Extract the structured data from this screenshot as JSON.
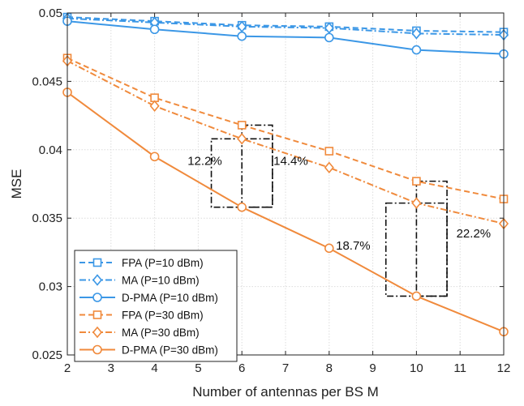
{
  "chart_data": {
    "type": "line",
    "title": "",
    "xlabel": "Number of antennas per BS M",
    "ylabel": "MSE",
    "xlim": [
      2,
      12
    ],
    "ylim": [
      0.025,
      0.05
    ],
    "x_ticks": [
      2,
      3,
      4,
      5,
      6,
      7,
      8,
      9,
      10,
      11,
      12
    ],
    "y_ticks": [
      0.025,
      0.03,
      0.035,
      0.04,
      0.045,
      0.05
    ],
    "y_tick_labels": [
      "0.025",
      "0.03",
      "0.035",
      "0.04",
      "0.045",
      "0.05"
    ],
    "grid": true,
    "legend_location": "bottom-left",
    "x": [
      2,
      4,
      6,
      8,
      10,
      12
    ],
    "series": [
      {
        "name": "FPA (P=10 dBm)",
        "color": "#3b97e6",
        "marker": "square",
        "dash": "dashed",
        "values": [
          0.0497,
          0.0494,
          0.0491,
          0.049,
          0.0487,
          0.0486
        ]
      },
      {
        "name": "MA (P=10 dBm)",
        "color": "#3b97e6",
        "marker": "diamond",
        "dash": "dashdot",
        "values": [
          0.0496,
          0.0493,
          0.049,
          0.0489,
          0.0485,
          0.0484
        ]
      },
      {
        "name": "D-PMA (P=10 dBm)",
        "color": "#3b97e6",
        "marker": "circle",
        "dash": "solid",
        "values": [
          0.0494,
          0.0488,
          0.0483,
          0.0482,
          0.0473,
          0.047
        ]
      },
      {
        "name": "FPA (P=30 dBm)",
        "color": "#f08a3c",
        "marker": "square",
        "dash": "dashed",
        "values": [
          0.0467,
          0.0438,
          0.0418,
          0.0399,
          0.0377,
          0.0364
        ]
      },
      {
        "name": "MA (P=30 dBm)",
        "color": "#f08a3c",
        "marker": "diamond",
        "dash": "dashdot",
        "values": [
          0.0465,
          0.0432,
          0.0408,
          0.0387,
          0.0361,
          0.0346
        ]
      },
      {
        "name": "D-PMA (P=30 dBm)",
        "color": "#f08a3c",
        "marker": "circle",
        "dash": "solid",
        "values": [
          0.0442,
          0.0395,
          0.0358,
          0.0328,
          0.0293,
          0.0267
        ]
      }
    ],
    "annotations": [
      {
        "text": "12.2%",
        "x": 5.15,
        "y": 0.0389
      },
      {
        "text": "14.4%",
        "x": 7.12,
        "y": 0.0389
      },
      {
        "text": "18.7%",
        "x": 8.55,
        "y": 0.0327
      },
      {
        "text": "22.2%",
        "x": 11.31,
        "y": 0.0336
      }
    ],
    "boxes": [
      {
        "x0": 5.3,
        "x1": 6.7,
        "y0": 0.0358,
        "y1": 0.0408,
        "color": "#111111"
      },
      {
        "x0": 6.0,
        "x1": 6.7,
        "y0": 0.0358,
        "y1": 0.0418,
        "color": "#111111"
      },
      {
        "x0": 9.3,
        "x1": 10.7,
        "y0": 0.0293,
        "y1": 0.0361,
        "color": "#111111"
      },
      {
        "x0": 10.0,
        "x1": 10.7,
        "y0": 0.0293,
        "y1": 0.0377,
        "color": "#111111"
      }
    ]
  }
}
